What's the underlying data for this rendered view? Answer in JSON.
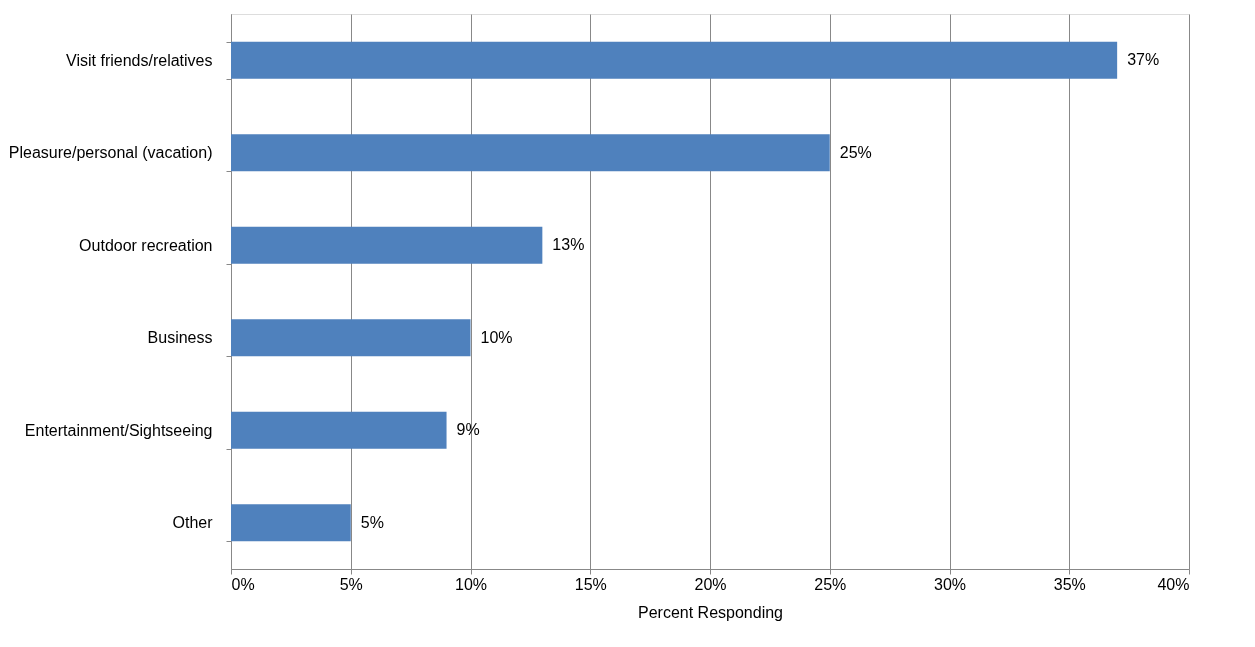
{
  "chart_data": {
    "type": "bar",
    "orientation": "horizontal",
    "xlabel": "Percent Responding",
    "categories": [
      "Visit friends/relatives",
      "Pleasure/personal (vacation)",
      "Outdoor recreation",
      "Business",
      "Entertainment/Sightseeing",
      "Other"
    ],
    "values": [
      37,
      25,
      13,
      10,
      9,
      5
    ],
    "value_labels": [
      "37%",
      "25%",
      "13%",
      "10%",
      "9%",
      "5%"
    ],
    "color": "#4f81bd",
    "xlim": [
      0,
      40
    ],
    "xticks": [
      {
        "value": 0,
        "label": "0%"
      },
      {
        "value": 5,
        "label": "5%"
      },
      {
        "value": 10,
        "label": "10%"
      },
      {
        "value": 15,
        "label": "15%"
      },
      {
        "value": 20,
        "label": "20%"
      },
      {
        "value": 25,
        "label": "25%"
      },
      {
        "value": 30,
        "label": "30%"
      },
      {
        "value": 35,
        "label": "35%"
      },
      {
        "value": 40,
        "label": "40%"
      }
    ],
    "grid": "x"
  }
}
